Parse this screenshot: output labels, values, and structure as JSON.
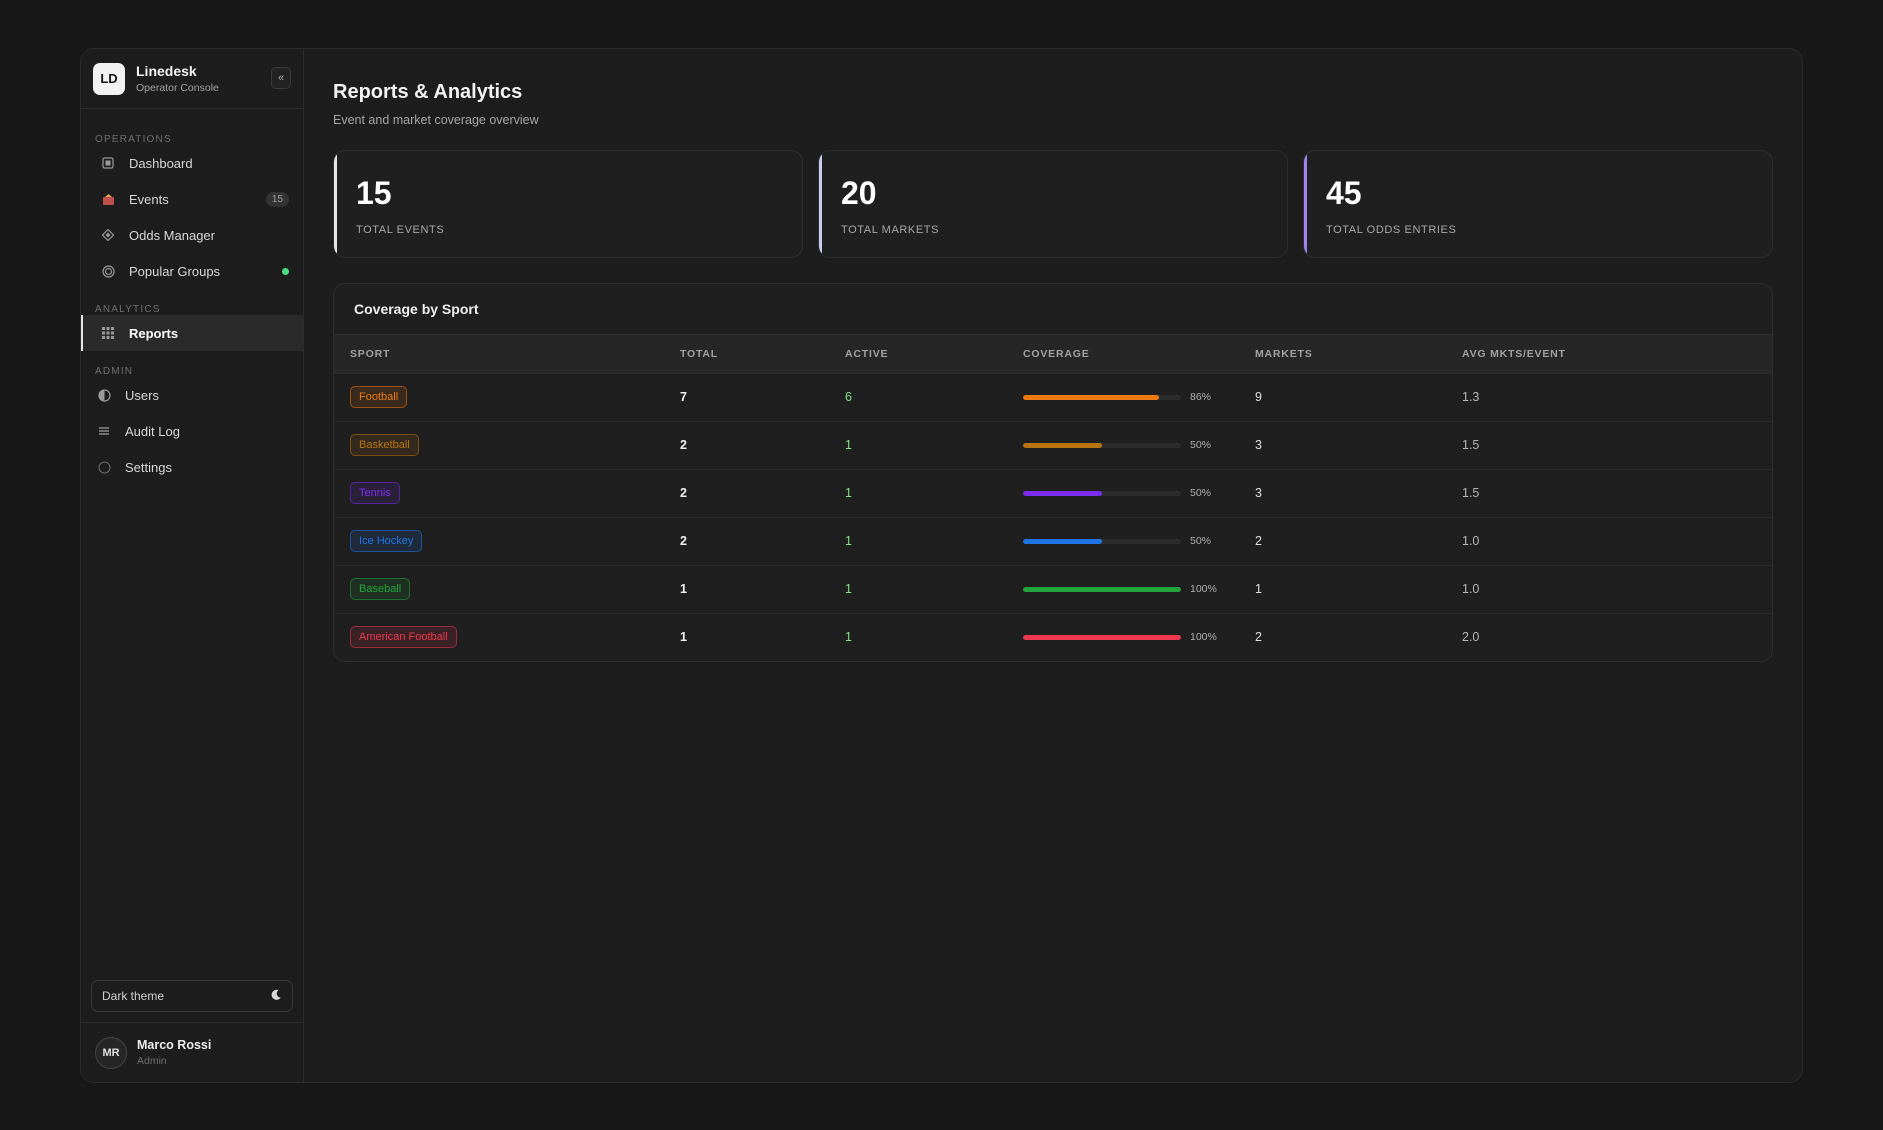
{
  "brand": {
    "initials": "LD",
    "name": "Linedesk",
    "subtitle": "Operator Console",
    "collapse_icon": "«"
  },
  "sidebar": {
    "sections": [
      {
        "label": "OPERATIONS"
      },
      {
        "label": "ANALYTICS"
      },
      {
        "label": "ADMIN"
      }
    ],
    "items": [
      {
        "label": "Dashboard",
        "icon": "dashboard-icon"
      },
      {
        "label": "Events",
        "icon": "events-icon",
        "badge": "15"
      },
      {
        "label": "Odds Manager",
        "icon": "odds-icon"
      },
      {
        "label": "Popular Groups",
        "icon": "groups-icon",
        "status": "online"
      },
      {
        "label": "Reports",
        "icon": "reports-icon",
        "active": true
      },
      {
        "label": "Users",
        "icon": "users-icon"
      },
      {
        "label": "Audit Log",
        "icon": "audit-log-icon"
      },
      {
        "label": "Settings",
        "icon": "settings-icon"
      }
    ],
    "theme_toggle": {
      "label": "Dark theme",
      "icon": "moon-icon"
    },
    "user": {
      "initials": "MR",
      "name": "Marco Rossi",
      "role": "Admin"
    }
  },
  "page": {
    "title": "Reports & Analytics",
    "subtitle": "Event and market coverage overview"
  },
  "stats": [
    {
      "value": "15",
      "label": "TOTAL EVENTS"
    },
    {
      "value": "20",
      "label": "TOTAL MARKETS"
    },
    {
      "value": "45",
      "label": "TOTAL ODDS ENTRIES"
    }
  ],
  "coverage": {
    "title": "Coverage by Sport",
    "columns": [
      "SPORT",
      "TOTAL",
      "ACTIVE",
      "COVERAGE",
      "MARKETS",
      "AVG MKTS/EVENT"
    ],
    "rows": [
      {
        "sport": "Football",
        "total": "7",
        "active": "6",
        "coverage": 86,
        "coverage_label": "86%",
        "markets": "9",
        "avg": "1.3",
        "color": "#f07a12"
      },
      {
        "sport": "Basketball",
        "total": "2",
        "active": "1",
        "coverage": 50,
        "coverage_label": "50%",
        "markets": "3",
        "avg": "1.5",
        "color": "#b87410"
      },
      {
        "sport": "Tennis",
        "total": "2",
        "active": "1",
        "coverage": 50,
        "coverage_label": "50%",
        "markets": "3",
        "avg": "1.5",
        "color": "#7c2df0"
      },
      {
        "sport": "Ice Hockey",
        "total": "2",
        "active": "1",
        "coverage": 50,
        "coverage_label": "50%",
        "markets": "2",
        "avg": "1.0",
        "color": "#1f74e6"
      },
      {
        "sport": "Baseball",
        "total": "1",
        "active": "1",
        "coverage": 100,
        "coverage_label": "100%",
        "markets": "1",
        "avg": "1.0",
        "color": "#22a53c"
      },
      {
        "sport": "American Football",
        "total": "1",
        "active": "1",
        "coverage": 100,
        "coverage_label": "100%",
        "markets": "2",
        "avg": "2.0",
        "color": "#ee3850"
      }
    ]
  }
}
